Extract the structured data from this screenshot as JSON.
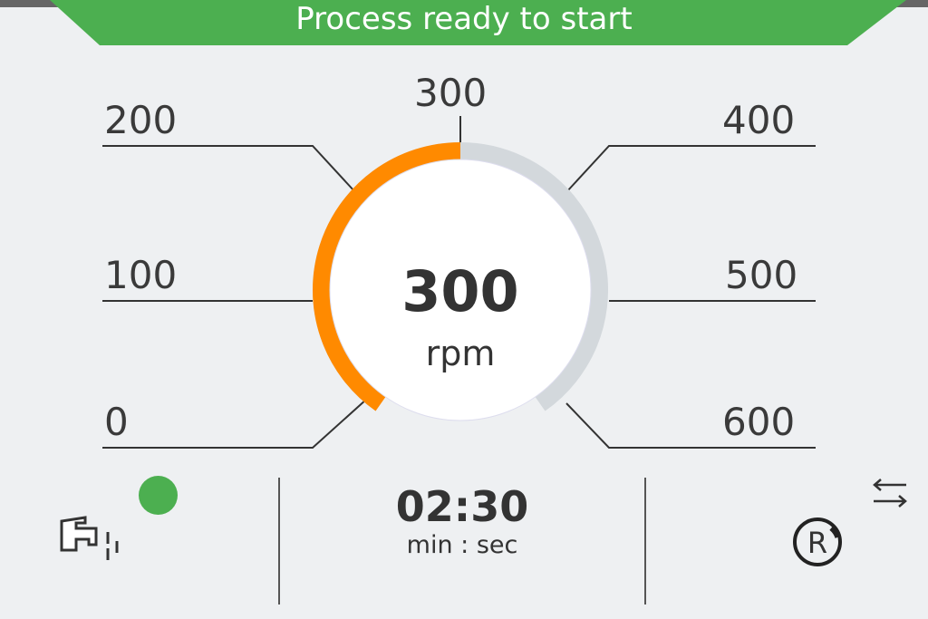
{
  "status": {
    "text": "Process ready to start",
    "color": "#4caf50"
  },
  "gauge": {
    "value": 300,
    "min": 0,
    "max": 600,
    "unit": "rpm",
    "display": "300",
    "accent": "#ff8a00",
    "track": "#d3d8dc",
    "ticks": [
      "0",
      "100",
      "200",
      "300",
      "400",
      "500",
      "600"
    ]
  },
  "timer": {
    "value": "02:30",
    "unit": "min : sec"
  },
  "bottom": {
    "tap_icon": "water-tap-icon",
    "indicator_color": "#4caf50",
    "swap_icon": "swap-arrows-icon",
    "r_icon": "r-mode-icon"
  }
}
